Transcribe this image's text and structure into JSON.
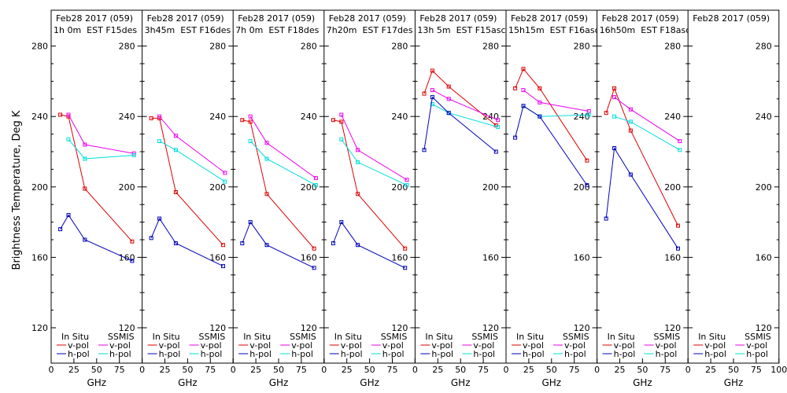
{
  "chart_data": {
    "type": "line",
    "ylabel": "Brightness Temperature, Deg K",
    "xlabel": "GHz",
    "ylim": [
      110,
      290
    ],
    "yticks": [
      120,
      160,
      200,
      240,
      280
    ],
    "xlim": [
      0,
      100
    ],
    "xticks": [
      0,
      25,
      50,
      75,
      100
    ],
    "legend_left": "In Situ",
    "legend_right": "SSMIS",
    "vpol_label": "v-pol",
    "hpol_label": "h-pol",
    "colors": {
      "insitu_v": "#dd0000",
      "insitu_h": "#0000bb",
      "ssmis_v": "#ee00ee",
      "ssmis_h": "#00dddd"
    },
    "panels": [
      {
        "date": "Feb28 2017 (059)",
        "time": "1h 0m  EST F15des",
        "insitu_v": {
          "x": [
            10,
            19,
            37,
            89
          ],
          "y": [
            241,
            240,
            199,
            169
          ]
        },
        "insitu_h": {
          "x": [
            10,
            19,
            37,
            89
          ],
          "y": [
            176,
            184,
            170,
            158
          ]
        },
        "ssmis_v": {
          "x": [
            19,
            37,
            91
          ],
          "y": [
            241,
            224,
            219
          ]
        },
        "ssmis_h": {
          "x": [
            19,
            37,
            91
          ],
          "y": [
            227,
            216,
            218
          ]
        }
      },
      {
        "date": "Feb28 2017 (059)",
        "time": "3h45m  EST F16des",
        "insitu_v": {
          "x": [
            10,
            19,
            37,
            89
          ],
          "y": [
            239,
            239,
            197,
            167
          ]
        },
        "insitu_h": {
          "x": [
            10,
            19,
            37,
            89
          ],
          "y": [
            171,
            182,
            168,
            155
          ]
        },
        "ssmis_v": {
          "x": [
            19,
            37,
            91
          ],
          "y": [
            240,
            229,
            208
          ]
        },
        "ssmis_h": {
          "x": [
            19,
            37,
            91
          ],
          "y": [
            226,
            221,
            203
          ]
        }
      },
      {
        "date": "Feb28 2017 (059)",
        "time": "7h 0m  EST F18des",
        "insitu_v": {
          "x": [
            10,
            19,
            37,
            89
          ],
          "y": [
            238,
            237,
            196,
            165
          ]
        },
        "insitu_h": {
          "x": [
            10,
            19,
            37,
            89
          ],
          "y": [
            168,
            180,
            167,
            154
          ]
        },
        "ssmis_v": {
          "x": [
            19,
            37,
            91
          ],
          "y": [
            240,
            225,
            205
          ]
        },
        "ssmis_h": {
          "x": [
            19,
            37,
            91
          ],
          "y": [
            226,
            216,
            201
          ]
        }
      },
      {
        "date": "Feb28 2017 (059)",
        "time": "7h20m  EST F17des",
        "insitu_v": {
          "x": [
            10,
            19,
            37,
            89
          ],
          "y": [
            238,
            237,
            196,
            165
          ]
        },
        "insitu_h": {
          "x": [
            10,
            19,
            37,
            89
          ],
          "y": [
            168,
            180,
            167,
            154
          ]
        },
        "ssmis_v": {
          "x": [
            19,
            37,
            91
          ],
          "y": [
            241,
            221,
            204
          ]
        },
        "ssmis_h": {
          "x": [
            19,
            37,
            91
          ],
          "y": [
            227,
            214,
            201
          ]
        }
      },
      {
        "date": "Feb28 2017 (059)",
        "time": "13h 5m  EST F15asc",
        "insitu_v": {
          "x": [
            10,
            19,
            37,
            89
          ],
          "y": [
            253,
            266,
            257,
            235
          ]
        },
        "insitu_h": {
          "x": [
            10,
            19,
            37,
            89
          ],
          "y": [
            221,
            251,
            242,
            220
          ]
        },
        "ssmis_v": {
          "x": [
            19,
            37,
            91
          ],
          "y": [
            255,
            250,
            238
          ]
        },
        "ssmis_h": {
          "x": [
            19,
            37,
            91
          ],
          "y": [
            247,
            242,
            234
          ]
        }
      },
      {
        "date": "Feb28 2017 (059)",
        "time": "15h15m  EST F16asc",
        "insitu_v": {
          "x": [
            10,
            19,
            37,
            89
          ],
          "y": [
            256,
            267,
            256,
            215
          ]
        },
        "insitu_h": {
          "x": [
            10,
            19,
            37,
            89
          ],
          "y": [
            228,
            246,
            240,
            201
          ]
        },
        "ssmis_v": {
          "x": [
            19,
            37,
            91
          ],
          "y": [
            255,
            248,
            243
          ]
        },
        "ssmis_h": {
          "x": [
            19,
            37,
            91
          ],
          "y": [
            246,
            240,
            241
          ]
        }
      },
      {
        "date": "Feb28 2017 (059)",
        "time": "16h50m  EST F18asc",
        "insitu_v": {
          "x": [
            10,
            19,
            37,
            89
          ],
          "y": [
            242,
            256,
            232,
            178
          ]
        },
        "insitu_h": {
          "x": [
            10,
            19,
            37,
            89
          ],
          "y": [
            182,
            222,
            207,
            165
          ]
        },
        "ssmis_v": {
          "x": [
            19,
            37,
            91
          ],
          "y": [
            251,
            244,
            226
          ]
        },
        "ssmis_h": {
          "x": [
            19,
            37,
            91
          ],
          "y": [
            240,
            237,
            221
          ]
        }
      },
      {
        "date": "Feb28 2017 (059)",
        "time": "",
        "insitu_v": {
          "x": [],
          "y": []
        },
        "insitu_h": {
          "x": [],
          "y": []
        },
        "ssmis_v": {
          "x": [],
          "y": []
        },
        "ssmis_h": {
          "x": [],
          "y": []
        }
      }
    ]
  }
}
